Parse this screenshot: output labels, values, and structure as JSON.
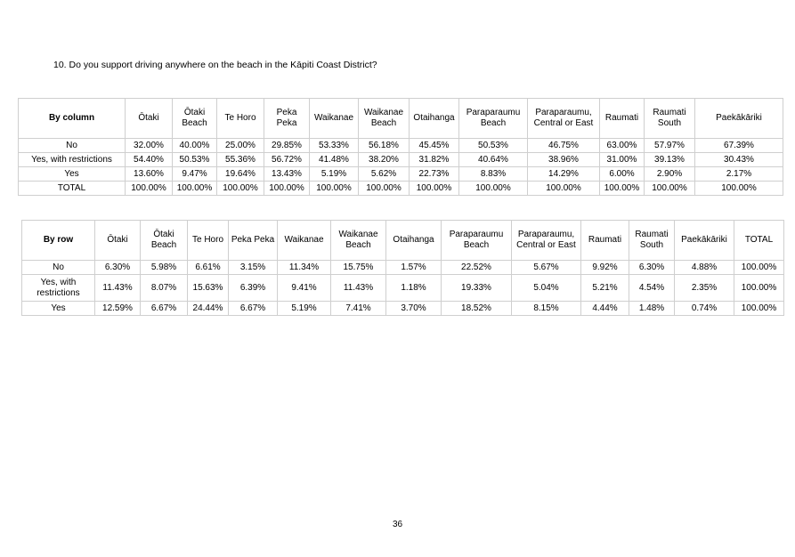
{
  "question": "10.  Do you support driving anywhere on the beach in the Kāpiti Coast District?",
  "by_column": {
    "corner": "By column",
    "headers": [
      "Ōtaki",
      "Ōtaki Beach",
      "Te Horo",
      "Peka Peka",
      "Waikanae",
      "Waikanae Beach",
      "Otaihanga",
      "Paraparaumu Beach",
      "Paraparaumu, Central or East",
      "Raumati",
      "Raumati South",
      "Paekākāriki"
    ],
    "rows": [
      {
        "label": "No",
        "values": [
          "32.00%",
          "40.00%",
          "25.00%",
          "29.85%",
          "53.33%",
          "56.18%",
          "45.45%",
          "50.53%",
          "46.75%",
          "63.00%",
          "57.97%",
          "67.39%"
        ]
      },
      {
        "label": "Yes, with restrictions",
        "values": [
          "54.40%",
          "50.53%",
          "55.36%",
          "56.72%",
          "41.48%",
          "38.20%",
          "31.82%",
          "40.64%",
          "38.96%",
          "31.00%",
          "39.13%",
          "30.43%"
        ]
      },
      {
        "label": "Yes",
        "values": [
          "13.60%",
          "9.47%",
          "19.64%",
          "13.43%",
          "5.19%",
          "5.62%",
          "22.73%",
          "8.83%",
          "14.29%",
          "6.00%",
          "2.90%",
          "2.17%"
        ]
      },
      {
        "label": "TOTAL",
        "values": [
          "100.00%",
          "100.00%",
          "100.00%",
          "100.00%",
          "100.00%",
          "100.00%",
          "100.00%",
          "100.00%",
          "100.00%",
          "100.00%",
          "100.00%",
          "100.00%"
        ]
      }
    ]
  },
  "by_row": {
    "corner": "By row",
    "headers": [
      "Ōtaki",
      "Ōtaki Beach",
      "Te Horo",
      "Peka Peka",
      "Waikanae",
      "Waikanae Beach",
      "Otaihanga",
      "Paraparaumu Beach",
      "Paraparaumu, Central or East",
      "Raumati",
      "Raumati South",
      "Paekākāriki",
      "TOTAL"
    ],
    "rows": [
      {
        "label": "No",
        "values": [
          "6.30%",
          "5.98%",
          "6.61%",
          "3.15%",
          "11.34%",
          "15.75%",
          "1.57%",
          "22.52%",
          "5.67%",
          "9.92%",
          "6.30%",
          "4.88%",
          "100.00%"
        ]
      },
      {
        "label": "Yes, with restrictions",
        "values": [
          "11.43%",
          "8.07%",
          "15.63%",
          "6.39%",
          "9.41%",
          "11.43%",
          "1.18%",
          "19.33%",
          "5.04%",
          "5.21%",
          "4.54%",
          "2.35%",
          "100.00%"
        ]
      },
      {
        "label": "Yes",
        "values": [
          "12.59%",
          "6.67%",
          "24.44%",
          "6.67%",
          "5.19%",
          "7.41%",
          "3.70%",
          "18.52%",
          "8.15%",
          "4.44%",
          "1.48%",
          "0.74%",
          "100.00%"
        ]
      }
    ]
  },
  "page_number": "36"
}
